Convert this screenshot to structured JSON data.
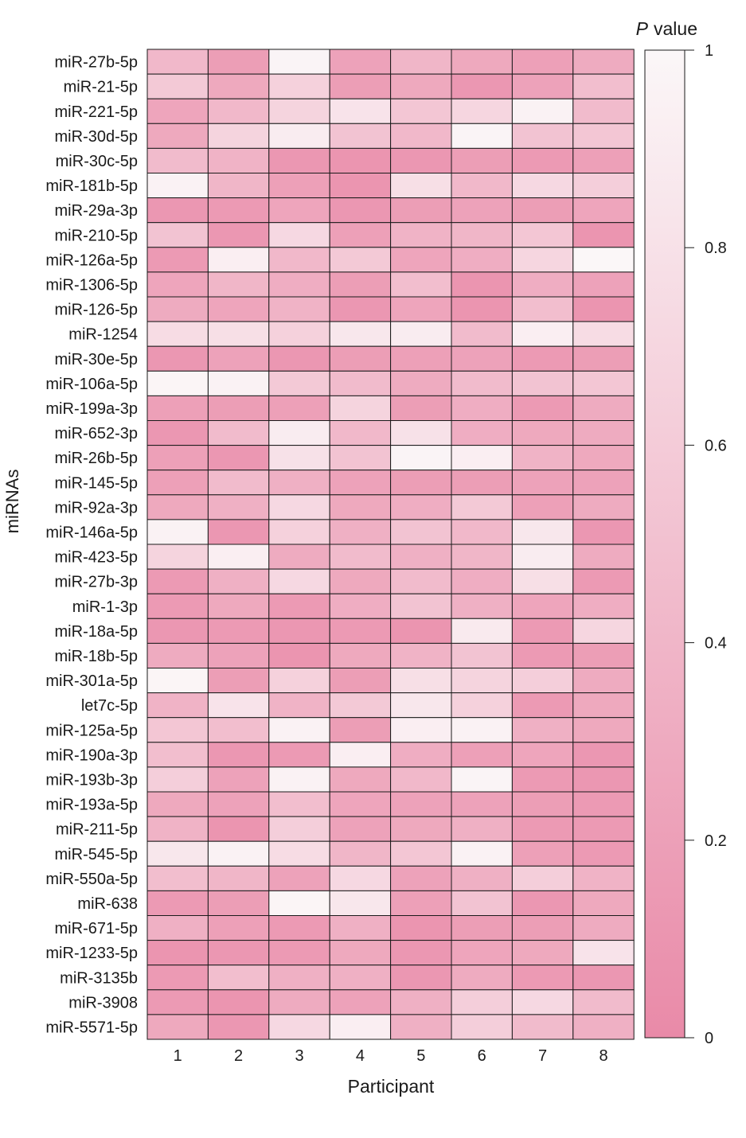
{
  "chart_data": {
    "type": "heatmap",
    "ylabel": "miRNAs",
    "xlabel": "Participant",
    "colorbar_title": "value",
    "colorbar_title_italic": "P",
    "colorbar_ticks": [
      "0",
      "0.2",
      "0.4",
      "0.6",
      "0.8",
      "1"
    ],
    "colorbar_range": [
      0,
      1
    ],
    "colors": {
      "low": "#e98aa8",
      "high": "#fbf7f8",
      "grid": "#1a1a1a"
    },
    "columns": [
      "1",
      "2",
      "3",
      "4",
      "5",
      "6",
      "7",
      "8"
    ],
    "rows": [
      "miR-27b-5p",
      "miR-21-5p",
      "miR-221-5p",
      "miR-30d-5p",
      "miR-30c-5p",
      "miR-181b-5p",
      "miR-29a-3p",
      "miR-210-5p",
      "miR-126a-5p",
      "miR-1306-5p",
      "miR-126-5p",
      "miR-1254",
      "miR-30e-5p",
      "miR-106a-5p",
      "miR-199a-3p",
      "miR-652-3p",
      "miR-26b-5p",
      "miR-145-5p",
      "miR-92a-3p",
      "miR-146a-5p",
      "miR-423-5p",
      "miR-27b-3p",
      "miR-1-3p",
      "miR-18a-5p",
      "miR-18b-5p",
      "miR-301a-5p",
      "let7c-5p",
      "miR-125a-5p",
      "miR-190a-3p",
      "miR-193b-3p",
      "miR-193a-5p",
      "miR-211-5p",
      "miR-545-5p",
      "miR-550a-5p",
      "miR-638",
      "miR-671-5p",
      "miR-1233-5p",
      "miR-3135b",
      "miR-3908",
      "miR-5571-5p"
    ],
    "values": [
      [
        0.42,
        0.18,
        0.97,
        0.22,
        0.4,
        0.28,
        0.2,
        0.3
      ],
      [
        0.58,
        0.28,
        0.65,
        0.18,
        0.28,
        0.12,
        0.22,
        0.48
      ],
      [
        0.25,
        0.42,
        0.68,
        0.82,
        0.55,
        0.7,
        0.95,
        0.45
      ],
      [
        0.28,
        0.68,
        0.9,
        0.52,
        0.42,
        0.97,
        0.52,
        0.55
      ],
      [
        0.45,
        0.38,
        0.12,
        0.1,
        0.12,
        0.18,
        0.15,
        0.2
      ],
      [
        0.95,
        0.4,
        0.2,
        0.1,
        0.78,
        0.42,
        0.72,
        0.62
      ],
      [
        0.12,
        0.15,
        0.25,
        0.12,
        0.18,
        0.22,
        0.18,
        0.25
      ],
      [
        0.52,
        0.12,
        0.72,
        0.2,
        0.38,
        0.4,
        0.55,
        0.1
      ],
      [
        0.15,
        0.92,
        0.42,
        0.58,
        0.25,
        0.32,
        0.7,
        1.0
      ],
      [
        0.25,
        0.4,
        0.32,
        0.18,
        0.48,
        0.1,
        0.32,
        0.22
      ],
      [
        0.3,
        0.25,
        0.38,
        0.12,
        0.25,
        0.1,
        0.48,
        0.1
      ],
      [
        0.75,
        0.78,
        0.65,
        0.85,
        0.9,
        0.45,
        0.92,
        0.75
      ],
      [
        0.12,
        0.22,
        0.12,
        0.18,
        0.2,
        0.22,
        0.15,
        0.18
      ],
      [
        0.98,
        0.95,
        0.58,
        0.45,
        0.3,
        0.45,
        0.52,
        0.55
      ],
      [
        0.2,
        0.18,
        0.2,
        0.68,
        0.18,
        0.32,
        0.15,
        0.3
      ],
      [
        0.12,
        0.45,
        0.9,
        0.42,
        0.8,
        0.32,
        0.28,
        0.3
      ],
      [
        0.2,
        0.12,
        0.8,
        0.52,
        0.97,
        0.92,
        0.38,
        0.28
      ],
      [
        0.2,
        0.45,
        0.35,
        0.22,
        0.18,
        0.18,
        0.22,
        0.22
      ],
      [
        0.28,
        0.35,
        0.72,
        0.28,
        0.32,
        0.58,
        0.2,
        0.3
      ],
      [
        0.95,
        0.12,
        0.65,
        0.35,
        0.52,
        0.42,
        0.85,
        0.12
      ],
      [
        0.68,
        0.92,
        0.3,
        0.45,
        0.35,
        0.4,
        0.9,
        0.3
      ],
      [
        0.15,
        0.35,
        0.72,
        0.28,
        0.45,
        0.32,
        0.78,
        0.15
      ],
      [
        0.15,
        0.28,
        0.15,
        0.32,
        0.52,
        0.35,
        0.25,
        0.32
      ],
      [
        0.12,
        0.15,
        0.12,
        0.15,
        0.1,
        0.88,
        0.15,
        0.7
      ],
      [
        0.3,
        0.22,
        0.1,
        0.28,
        0.38,
        0.52,
        0.15,
        0.18
      ],
      [
        0.98,
        0.18,
        0.65,
        0.18,
        0.78,
        0.68,
        0.62,
        0.3
      ],
      [
        0.38,
        0.82,
        0.38,
        0.58,
        0.85,
        0.65,
        0.15,
        0.28
      ],
      [
        0.55,
        0.48,
        0.95,
        0.18,
        0.92,
        0.95,
        0.35,
        0.28
      ],
      [
        0.48,
        0.12,
        0.15,
        0.92,
        0.32,
        0.2,
        0.25,
        0.12
      ],
      [
        0.62,
        0.22,
        0.95,
        0.28,
        0.42,
        0.97,
        0.15,
        0.12
      ],
      [
        0.28,
        0.22,
        0.48,
        0.25,
        0.22,
        0.22,
        0.18,
        0.15
      ],
      [
        0.38,
        0.1,
        0.62,
        0.22,
        0.28,
        0.35,
        0.15,
        0.15
      ],
      [
        0.85,
        0.95,
        0.75,
        0.4,
        0.55,
        0.95,
        0.2,
        0.15
      ],
      [
        0.48,
        0.4,
        0.22,
        0.72,
        0.22,
        0.35,
        0.62,
        0.38
      ],
      [
        0.15,
        0.18,
        0.98,
        0.85,
        0.2,
        0.52,
        0.12,
        0.28
      ],
      [
        0.35,
        0.2,
        0.15,
        0.35,
        0.1,
        0.18,
        0.18,
        0.3
      ],
      [
        0.1,
        0.12,
        0.15,
        0.28,
        0.12,
        0.25,
        0.28,
        0.82
      ],
      [
        0.15,
        0.48,
        0.35,
        0.35,
        0.12,
        0.3,
        0.15,
        0.12
      ],
      [
        0.15,
        0.1,
        0.3,
        0.22,
        0.35,
        0.62,
        0.72,
        0.45
      ],
      [
        0.28,
        0.12,
        0.72,
        0.92,
        0.35,
        0.62,
        0.45,
        0.35
      ]
    ]
  }
}
